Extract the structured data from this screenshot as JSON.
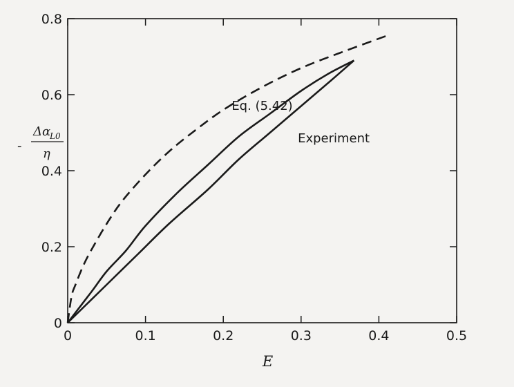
{
  "chart_data": {
    "type": "line",
    "title": "",
    "xlabel": "E",
    "ylabel": {
      "prefix": "-",
      "numerator": "Δα",
      "numerator_sub": "L0",
      "denominator": "η"
    },
    "xlim": [
      0,
      0.5
    ],
    "ylim": [
      0,
      0.8
    ],
    "xticks": [
      0,
      0.1,
      0.2,
      0.3,
      0.4,
      0.5
    ],
    "yticks": [
      0,
      0.2,
      0.4,
      0.6,
      0.8
    ],
    "xtick_labels": [
      "0",
      "0.1",
      "0.2",
      "0.3",
      "0.4",
      "0.5"
    ],
    "ytick_labels": [
      "0",
      "0.2",
      "0.4",
      "0.6",
      "0.8"
    ],
    "grid": false,
    "series": [
      {
        "name": "Eq. (5.42)",
        "style": "dashed",
        "color": "#1a1a1a",
        "x": [
          0,
          0.005,
          0.01,
          0.02,
          0.03,
          0.05,
          0.07,
          0.1,
          0.13,
          0.16,
          0.2,
          0.25,
          0.3,
          0.35,
          0.41
        ],
        "y": [
          0,
          0.07,
          0.1,
          0.15,
          0.19,
          0.26,
          0.32,
          0.39,
          0.45,
          0.5,
          0.56,
          0.62,
          0.67,
          0.71,
          0.755
        ]
      },
      {
        "name": "Experiment",
        "style": "solid",
        "color": "#1a1a1a",
        "x": [
          0,
          0.03,
          0.05,
          0.075,
          0.1,
          0.14,
          0.18,
          0.22,
          0.26,
          0.3,
          0.335,
          0.368
        ],
        "y": [
          0,
          0.08,
          0.135,
          0.19,
          0.255,
          0.34,
          0.415,
          0.49,
          0.55,
          0.61,
          0.655,
          0.69
        ]
      },
      {
        "name": "",
        "style": "solid",
        "color": "#1a1a1a",
        "x": [
          0,
          0.02,
          0.05,
          0.09,
          0.13,
          0.18,
          0.22,
          0.26,
          0.3,
          0.34,
          0.368
        ],
        "y": [
          0,
          0.04,
          0.1,
          0.18,
          0.26,
          0.35,
          0.43,
          0.5,
          0.57,
          0.64,
          0.69
        ]
      }
    ],
    "annotations": [
      {
        "text": "Eq. (5.42)",
        "x": 0.25,
        "y": 0.56
      },
      {
        "text": "Experiment",
        "x": 0.342,
        "y": 0.475
      }
    ]
  }
}
